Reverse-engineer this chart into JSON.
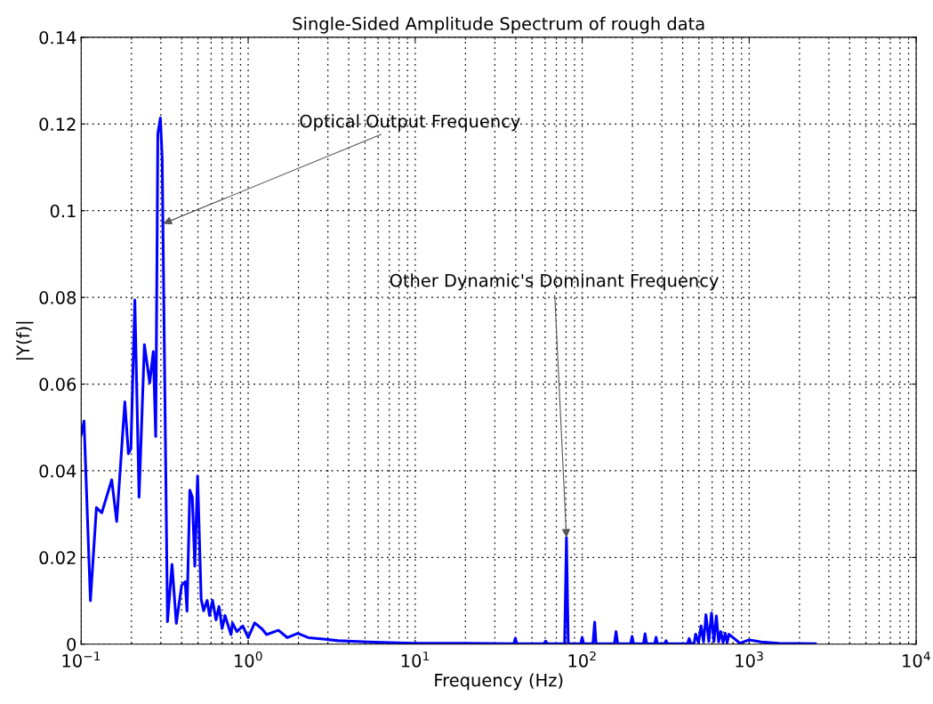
{
  "chart_data": {
    "type": "line",
    "title": "Single-Sided Amplitude Spectrum of rough data",
    "xlabel": "Frequency (Hz)",
    "ylabel": "|Y(f)|",
    "log": "x",
    "grid": true,
    "marker": "none",
    "line_style": "solid",
    "xlim": [
      0.1,
      10000
    ],
    "xticks": [
      {
        "value": 0.1,
        "label": "10$^{−1}$"
      },
      {
        "value": 1,
        "label": "10$^{0}$"
      },
      {
        "value": 10,
        "label": "10$^{1}$"
      },
      {
        "value": 100,
        "label": "10$^{2}$"
      },
      {
        "value": 1000,
        "label": "10$^{3}$"
      },
      {
        "value": 10000,
        "label": "10$^{4}$"
      }
    ],
    "ylim": [
      0,
      0.14
    ],
    "yticks": [
      0,
      0.02,
      0.04,
      0.06,
      0.08,
      0.1,
      0.12,
      0.14
    ],
    "annotations": [
      {
        "text": "Optical Output Frequency",
        "x": 0.31,
        "y": 0.097
      },
      {
        "text": "Other Dynamic's Dominant Frequency",
        "x": 80.5,
        "y": 0.0246
      }
    ],
    "series": [
      {
        "color": "#0000ff",
        "x": [
          0.1,
          0.104,
          0.1136,
          0.1234,
          0.1328,
          0.1524,
          0.1632,
          0.1826,
          0.1918,
          0.1985,
          0.2096,
          0.2222,
          0.2391,
          0.2573,
          0.2703,
          0.2795,
          0.2878,
          0.2981,
          0.3055,
          0.3288,
          0.3499,
          0.3713,
          0.3998,
          0.4197,
          0.4302,
          0.4473,
          0.463,
          0.4791,
          0.498,
          0.523,
          0.541,
          0.568,
          0.587,
          0.612,
          0.642,
          0.669,
          0.698,
          0.727,
          0.789,
          0.805,
          0.856,
          0.929,
          1.0,
          1.094,
          1.212,
          1.289,
          1.518,
          1.717,
          1.982,
          2.288,
          2.807,
          3.445,
          5.19,
          7.8,
          10,
          20,
          39,
          39.8,
          40.6,
          59,
          60.4,
          62,
          78.5,
          80.5,
          82.5,
          98,
          100,
          102,
          116,
          118.8,
          121,
          156,
          159.5,
          163,
          195,
          199,
          203,
          233,
          238,
          243,
          272,
          277,
          282,
          312,
          318,
          324,
          428,
          437,
          446,
          468,
          478,
          497,
          515,
          533,
          551,
          573,
          595,
          615,
          636,
          656,
          676,
          698,
          719,
          738,
          757,
          880,
          1000,
          1178,
          1500,
          2490
        ],
        "values": [
          0.0483,
          0.0515,
          0.01,
          0.0315,
          0.0303,
          0.0379,
          0.0283,
          0.0559,
          0.0439,
          0.0451,
          0.0794,
          0.0339,
          0.0691,
          0.0603,
          0.0675,
          0.0479,
          0.1178,
          0.1214,
          0.1122,
          0.0052,
          0.0184,
          0.0048,
          0.0136,
          0.0144,
          0.0076,
          0.0355,
          0.0339,
          0.018,
          0.0388,
          0.0104,
          0.0077,
          0.0101,
          0.0066,
          0.0101,
          0.0056,
          0.0087,
          0.0036,
          0.0066,
          0.0022,
          0.0049,
          0.0029,
          0.0042,
          0.0015,
          0.0049,
          0.0035,
          0.0022,
          0.0032,
          0.0015,
          0.0025,
          0.0015,
          0.0012,
          0.0008,
          0.0005,
          0.0003,
          0.0002,
          0.0002,
          0.0001,
          0.0014,
          0.0001,
          0.0001,
          0.0007,
          0.0001,
          0.0001,
          0.0246,
          0.0001,
          0.0001,
          0.0016,
          0.0001,
          0.0001,
          0.0051,
          0.0001,
          0.0001,
          0.0029,
          0.0001,
          0.0001,
          0.0018,
          0.0001,
          0.0001,
          0.0024,
          0.0001,
          0.0001,
          0.0016,
          0.0001,
          0.0001,
          0.0008,
          0.0001,
          0.0001,
          0.0013,
          0.0001,
          0.0002,
          0.0023,
          0.0003,
          0.0042,
          0.0005,
          0.0068,
          0.0006,
          0.0072,
          0.0006,
          0.0065,
          0.0005,
          0.0029,
          0.0004,
          0.0025,
          0.0003,
          0.0023,
          0.0002,
          0.001,
          0.0005,
          0.0002,
          0.0001
        ]
      }
    ]
  }
}
